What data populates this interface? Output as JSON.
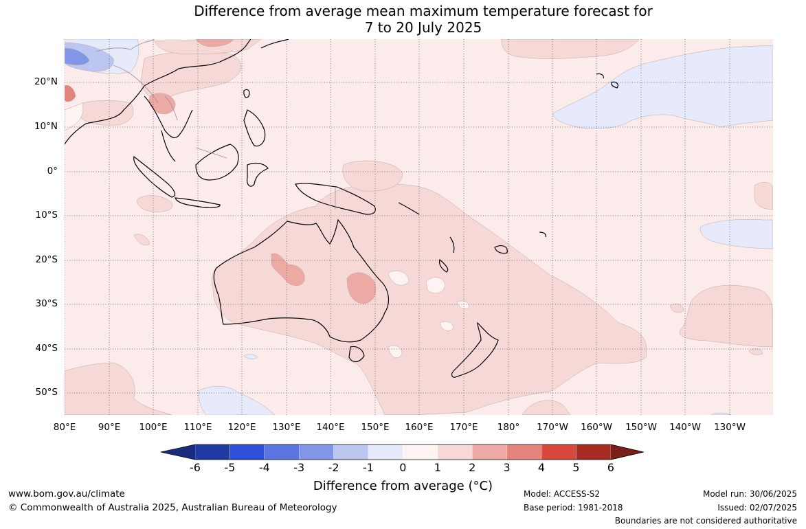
{
  "title_line1": "Difference from average mean maximum temperature forecast for",
  "title_line2": "7 to 20 July 2025",
  "lat_labels": [
    "20°N",
    "10°N",
    "0°",
    "10°S",
    "20°S",
    "30°S",
    "40°S",
    "50°S"
  ],
  "lon_labels": [
    "80°E",
    "90°E",
    "100°E",
    "110°E",
    "120°E",
    "130°E",
    "140°E",
    "150°E",
    "160°E",
    "170°E",
    "180°",
    "170°W",
    "160°W",
    "150°W",
    "140°W",
    "130°W"
  ],
  "colorbar": {
    "ticks": [
      "-6",
      "-5",
      "-4",
      "-3",
      "-2",
      "-1",
      "0",
      "1",
      "2",
      "3",
      "4",
      "5",
      "6"
    ],
    "colors": [
      "#1f3aa0",
      "#2e4fd8",
      "#5a76e0",
      "#8196e6",
      "#bcc6f0",
      "#e6eafa",
      "#fdf3f2",
      "#f6d9d7",
      "#eda9a4",
      "#e4847d",
      "#d9483d",
      "#a82b23"
    ],
    "low_extend_color": "#1a2c80",
    "high_extend_color": "#7a1e1a",
    "label": "Difference from average (°C)"
  },
  "colors": {
    "map_background": "#fbebea",
    "band_0_1": "#fdf3f2",
    "band_1_2": "#f6d9d7",
    "band_2_3": "#eda9a4",
    "band_3_4": "#e4847d",
    "band_m1_0": "#e6eafa",
    "band_m2_m1": "#bcc6f0",
    "band_m3_m2": "#8196e6"
  },
  "footer": {
    "website": "www.bom.gov.au/climate",
    "copyright": "© Commonwealth of Australia 2025, Australian Bureau of Meteorology",
    "model": "Model: ACCESS-S2",
    "base_period": "Base period: 1981-2018",
    "model_run": "Model run: 30/06/2025",
    "issued": "Issued: 02/07/2025",
    "disclaimer": "Boundaries are not considered authoritative"
  }
}
